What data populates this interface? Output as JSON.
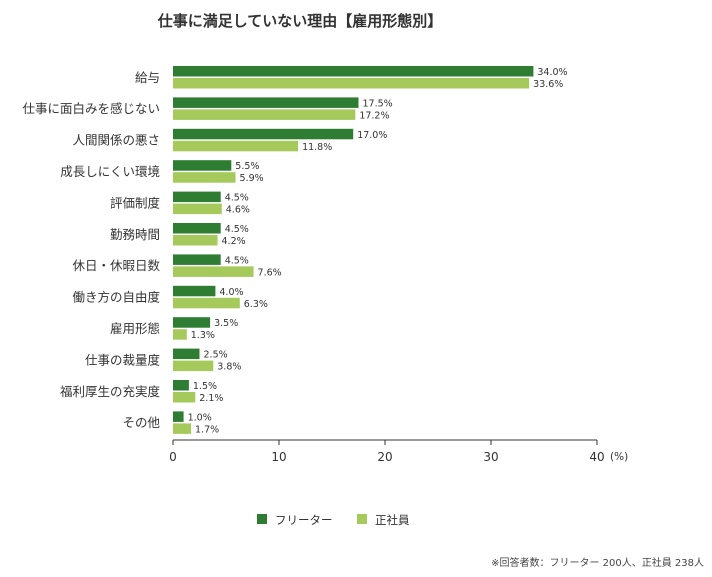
{
  "chart_data": {
    "type": "bar",
    "orientation": "horizontal",
    "title": "仕事に満足していない理由【雇用形態別】",
    "categories": [
      "給与",
      "仕事に面白みを感じない",
      "人間関係の悪さ",
      "成長しにくい環境",
      "評価制度",
      "勤務時間",
      "休日・休暇日数",
      "働き方の自由度",
      "雇用形態",
      "仕事の裁量度",
      "福利厚生の充実度",
      "その他"
    ],
    "series": [
      {
        "name": "フリーター",
        "color": "#2e7d32",
        "values": [
          34.0,
          17.5,
          17.0,
          5.5,
          4.5,
          4.5,
          4.5,
          4.0,
          3.5,
          2.5,
          1.5,
          1.0
        ],
        "labels": [
          "34.0%",
          "17.5%",
          "17.0%",
          "5.5%",
          "4.5%",
          "4.5%",
          "4.5%",
          "4.0%",
          "3.5%",
          "2.5%",
          "1.5%",
          "1.0%"
        ]
      },
      {
        "name": "正社員",
        "color": "#a5c95a",
        "values": [
          33.6,
          17.2,
          11.8,
          5.9,
          4.6,
          4.2,
          7.6,
          6.3,
          1.3,
          3.8,
          2.1,
          1.7
        ],
        "labels": [
          "33.6%",
          "17.2%",
          "11.8%",
          "5.9%",
          "4.6%",
          "4.2%",
          "7.6%",
          "6.3%",
          "1.3%",
          "3.8%",
          "2.1%",
          "1.7%"
        ]
      }
    ],
    "xlim": [
      0,
      40
    ],
    "xticks": [
      "0",
      "10",
      "20",
      "30",
      "40"
    ],
    "xunit": "(%)",
    "grid": false,
    "legend_position": "bottom-center",
    "note": "※回答者数：フリーター 200人、正社員 238人"
  }
}
